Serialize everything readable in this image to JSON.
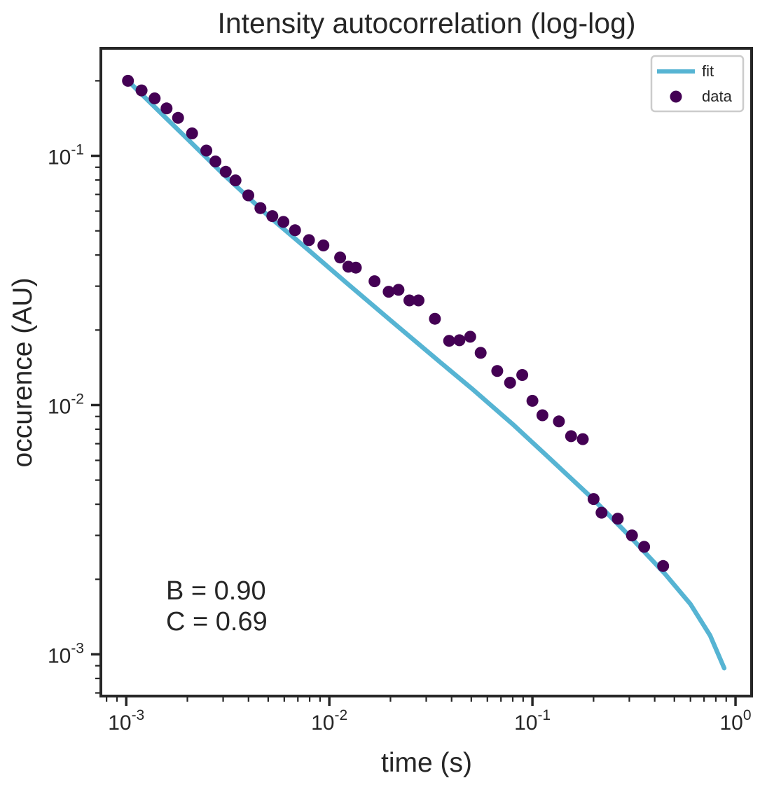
{
  "chart_data": {
    "type": "scatter",
    "title": "Intensity autocorrelation (log-log)",
    "xlabel": "time (s)",
    "ylabel": "occurence (AU)",
    "xscale": "log",
    "yscale": "log",
    "xlim": [
      0.00075,
      1.2
    ],
    "ylim": [
      0.00068,
      0.27
    ],
    "xticks": [
      {
        "value": 0.001,
        "base": "10",
        "exp": "-3"
      },
      {
        "value": 0.01,
        "base": "10",
        "exp": "-2"
      },
      {
        "value": 0.1,
        "base": "10",
        "exp": "-1"
      },
      {
        "value": 1,
        "base": "10",
        "exp": "0"
      }
    ],
    "yticks": [
      {
        "value": 0.001,
        "base": "10",
        "exp": "-3"
      },
      {
        "value": 0.01,
        "base": "10",
        "exp": "-2"
      },
      {
        "value": 0.1,
        "base": "10",
        "exp": "-1"
      }
    ],
    "grid": false,
    "legend_position": "top-right",
    "series": [
      {
        "name": "fit",
        "kind": "line",
        "color": "#56b4d3",
        "x": [
          0.00102,
          0.0015,
          0.002,
          0.003,
          0.005,
          0.008,
          0.012,
          0.02,
          0.035,
          0.05,
          0.08,
          0.12,
          0.2,
          0.3,
          0.45,
          0.6,
          0.75,
          0.88
        ],
        "y": [
          0.2,
          0.147,
          0.117,
          0.0845,
          0.0575,
          0.0415,
          0.0312,
          0.0219,
          0.0149,
          0.0117,
          0.00838,
          0.00617,
          0.00418,
          0.00299,
          0.0021,
          0.00159,
          0.00119,
          0.00088
        ]
      },
      {
        "name": "data",
        "kind": "scatter",
        "color": "#440154",
        "x": [
          0.00102,
          0.00119,
          0.00138,
          0.00158,
          0.0018,
          0.00211,
          0.00248,
          0.00275,
          0.00309,
          0.00345,
          0.00399,
          0.00458,
          0.00524,
          0.00594,
          0.00678,
          0.00794,
          0.00935,
          0.0113,
          0.0124,
          0.0135,
          0.0167,
          0.0196,
          0.0219,
          0.0248,
          0.0275,
          0.0331,
          0.0389,
          0.0437,
          0.0494,
          0.0556,
          0.0671,
          0.0776,
          0.0891,
          0.1,
          0.112,
          0.135,
          0.155,
          0.177,
          0.2,
          0.219,
          0.263,
          0.309,
          0.355,
          0.44
        ],
        "y": [
          0.2,
          0.183,
          0.17,
          0.155,
          0.142,
          0.123,
          0.105,
          0.0949,
          0.0863,
          0.0797,
          0.0694,
          0.0617,
          0.0573,
          0.0543,
          0.0503,
          0.0459,
          0.0437,
          0.0391,
          0.0359,
          0.0356,
          0.0314,
          0.0285,
          0.029,
          0.0263,
          0.0263,
          0.0222,
          0.0181,
          0.0182,
          0.0188,
          0.0162,
          0.0137,
          0.0123,
          0.0132,
          0.0104,
          0.0091,
          0.0086,
          0.0075,
          0.0073,
          0.0042,
          0.0037,
          0.0035,
          0.003,
          0.0027,
          0.00226
        ]
      }
    ],
    "annotations": [
      "B = 0.90",
      "C = 0.69"
    ]
  }
}
